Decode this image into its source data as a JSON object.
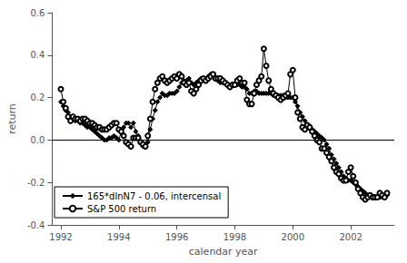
{
  "chart_data": {
    "type": "line",
    "xlabel": "calendar year",
    "ylabel": "return",
    "xlim": [
      1991.7,
      2003.5
    ],
    "ylim": [
      -0.4,
      0.6
    ],
    "xticks": [
      1992,
      1994,
      1996,
      1998,
      2000,
      2002
    ],
    "yticks": [
      -0.4,
      -0.2,
      {
        "value": 0.0,
        "label": "0.0"
      },
      0.2,
      0.4,
      0.6
    ],
    "grid": false,
    "legend": "lower left",
    "hline": 0,
    "x": [
      1992.0,
      1992.083,
      1992.167,
      1992.25,
      1992.333,
      1992.417,
      1992.5,
      1992.583,
      1992.667,
      1992.75,
      1992.833,
      1992.917,
      1993.0,
      1993.083,
      1993.167,
      1993.25,
      1993.333,
      1993.417,
      1993.5,
      1993.583,
      1993.667,
      1993.75,
      1993.833,
      1993.917,
      1994.0,
      1994.083,
      1994.167,
      1994.25,
      1994.333,
      1994.417,
      1994.5,
      1994.583,
      1994.667,
      1994.75,
      1994.833,
      1994.917,
      1995.0,
      1995.083,
      1995.167,
      1995.25,
      1995.333,
      1995.417,
      1995.5,
      1995.583,
      1995.667,
      1995.75,
      1995.833,
      1995.917,
      1996.0,
      1996.083,
      1996.167,
      1996.25,
      1996.333,
      1996.417,
      1996.5,
      1996.583,
      1996.667,
      1996.75,
      1996.833,
      1996.917,
      1997.0,
      1997.083,
      1997.167,
      1997.25,
      1997.333,
      1997.417,
      1997.5,
      1997.583,
      1997.667,
      1997.75,
      1997.833,
      1997.917,
      1998.0,
      1998.083,
      1998.167,
      1998.25,
      1998.333,
      1998.417,
      1998.5,
      1998.583,
      1998.667,
      1998.75,
      1998.833,
      1998.917,
      1999.0,
      1999.083,
      1999.167,
      1999.25,
      1999.333,
      1999.417,
      1999.5,
      1999.583,
      1999.667,
      1999.75,
      1999.833,
      1999.917,
      2000.0,
      2000.083,
      2000.167,
      2000.25,
      2000.333,
      2000.417,
      2000.5,
      2000.583,
      2000.667,
      2000.75,
      2000.833,
      2000.917,
      2001.0,
      2001.083,
      2001.167,
      2001.25,
      2001.333,
      2001.417,
      2001.5,
      2001.583,
      2001.667,
      2001.75,
      2001.833,
      2001.917,
      2002.0,
      2002.083,
      2002.167,
      2002.25,
      2002.333,
      2002.417,
      2002.5,
      2002.583,
      2002.667,
      2002.75,
      2002.833,
      2002.917,
      2003.0,
      2003.083,
      2003.167,
      2003.25
    ],
    "series": [
      {
        "name": "165*dlnN7 - 0.06, intercensal",
        "color": "#000000",
        "marker": "diamond",
        "values": [
          0.18,
          0.16,
          0.14,
          0.13,
          0.11,
          0.1,
          0.09,
          0.09,
          0.08,
          0.08,
          0.07,
          0.06,
          0.06,
          0.05,
          0.04,
          0.03,
          0.02,
          0.01,
          0.0,
          0.0,
          0.01,
          0.01,
          0.02,
          0.01,
          0.0,
          0.04,
          0.06,
          0.08,
          0.08,
          0.06,
          0.08,
          0.04,
          0.02,
          -0.01,
          -0.03,
          -0.03,
          -0.01,
          0.05,
          0.1,
          0.14,
          0.18,
          0.2,
          0.22,
          0.21,
          0.21,
          0.22,
          0.22,
          0.22,
          0.23,
          0.25,
          0.27,
          0.28,
          0.28,
          0.29,
          0.27,
          0.26,
          0.27,
          0.28,
          0.29,
          0.29,
          0.29,
          0.3,
          0.31,
          0.3,
          0.29,
          0.28,
          0.27,
          0.27,
          0.27,
          0.26,
          0.26,
          0.26,
          0.26,
          0.26,
          0.26,
          0.25,
          0.25,
          0.24,
          0.22,
          0.22,
          0.23,
          0.23,
          0.22,
          0.22,
          0.22,
          0.22,
          0.22,
          0.22,
          0.21,
          0.21,
          0.21,
          0.21,
          0.21,
          0.2,
          0.2,
          0.2,
          0.2,
          0.18,
          0.16,
          0.13,
          0.11,
          0.09,
          0.07,
          0.06,
          0.05,
          0.04,
          0.03,
          0.02,
          0.01,
          0.0,
          -0.02,
          -0.04,
          -0.07,
          -0.09,
          -0.11,
          -0.13,
          -0.15,
          -0.17,
          -0.18,
          -0.19,
          -0.19,
          -0.2,
          -0.21,
          -0.22,
          -0.23,
          -0.24,
          -0.25,
          -0.26,
          -0.26,
          -0.27,
          -0.27,
          -0.27,
          -0.27,
          -0.27,
          -0.27,
          -0.26
        ]
      },
      {
        "name": "S&P 500 return",
        "color": "#000000",
        "marker": "open circle",
        "values": [
          0.24,
          0.18,
          0.15,
          0.11,
          0.09,
          0.11,
          0.1,
          0.1,
          0.09,
          0.1,
          0.1,
          0.09,
          0.08,
          0.08,
          0.07,
          0.06,
          0.06,
          0.05,
          0.05,
          0.05,
          0.06,
          0.07,
          0.08,
          0.08,
          0.05,
          0.04,
          0.02,
          -0.01,
          -0.02,
          -0.03,
          0.01,
          0.01,
          0.01,
          -0.01,
          -0.02,
          -0.03,
          0.02,
          0.1,
          0.18,
          0.24,
          0.27,
          0.29,
          0.3,
          0.28,
          0.27,
          0.28,
          0.29,
          0.3,
          0.29,
          0.31,
          0.3,
          0.27,
          0.26,
          0.27,
          0.23,
          0.22,
          0.24,
          0.26,
          0.28,
          0.29,
          0.28,
          0.29,
          0.3,
          0.31,
          0.29,
          0.29,
          0.29,
          0.28,
          0.27,
          0.26,
          0.25,
          0.26,
          0.26,
          0.28,
          0.29,
          0.27,
          0.27,
          0.19,
          0.17,
          0.17,
          0.22,
          0.26,
          0.28,
          0.3,
          0.43,
          0.35,
          0.28,
          0.24,
          0.22,
          0.21,
          0.2,
          0.19,
          0.2,
          0.21,
          0.22,
          0.31,
          0.33,
          0.2,
          0.13,
          0.1,
          0.06,
          0.05,
          0.07,
          0.06,
          0.04,
          0.02,
          0.0,
          -0.01,
          -0.04,
          -0.04,
          -0.06,
          -0.08,
          -0.1,
          -0.13,
          -0.15,
          -0.16,
          -0.18,
          -0.19,
          -0.19,
          -0.15,
          -0.13,
          -0.17,
          -0.2,
          -0.23,
          -0.25,
          -0.27,
          -0.28,
          -0.27,
          -0.26,
          -0.27,
          -0.27,
          -0.27,
          -0.25,
          -0.26,
          -0.27,
          -0.25
        ]
      }
    ]
  }
}
